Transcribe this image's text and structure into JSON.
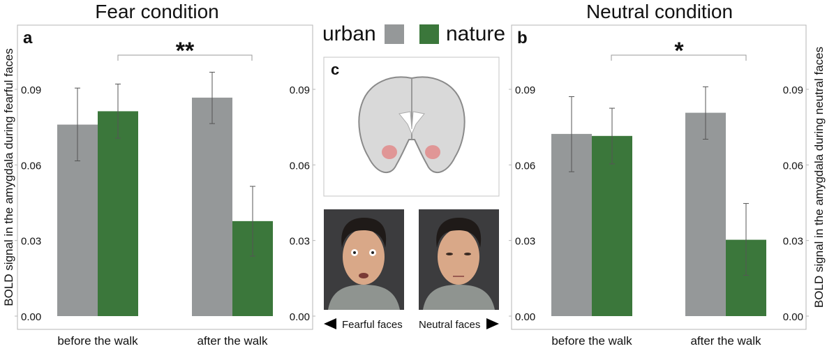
{
  "legend": {
    "urban_label": "urban",
    "nature_label": "nature"
  },
  "colors": {
    "urban": "#959899",
    "nature": "#3b773b",
    "error_bar": "#555555",
    "frame": "#b5b5b5"
  },
  "panel_c": {
    "label": "c",
    "fearful_label": "Fearful faces",
    "neutral_label": "Neutral faces",
    "images": [
      "brain-coronal-slice-amygdala-highlighted",
      "fearful-face-photo",
      "neutral-face-photo"
    ]
  },
  "chart_data": [
    {
      "type": "bar",
      "panel_label": "a",
      "title": "Fear condition",
      "ylabel": "BOLD signal in the amygdala during fearful faces",
      "categories": [
        "before the walk",
        "after the walk"
      ],
      "ylim": [
        0,
        0.09
      ],
      "yticks": [
        "0.00",
        "0.03",
        "0.06",
        "0.09"
      ],
      "series": [
        {
          "name": "urban",
          "values": [
            0.076,
            0.0867
          ],
          "err_high": [
            0.0905,
            0.0968
          ],
          "err_low": [
            0.0616,
            0.0764
          ]
        },
        {
          "name": "nature",
          "values": [
            0.0813,
            0.0377
          ],
          "err_high": [
            0.0921,
            0.0515
          ],
          "err_low": [
            0.0706,
            0.0238
          ]
        }
      ],
      "significance": "**",
      "grid": false
    },
    {
      "type": "bar",
      "panel_label": "b",
      "title": "Neutral condition",
      "ylabel": "BOLD signal in the amygdala during neutral faces",
      "categories": [
        "before the walk",
        "after the walk"
      ],
      "ylim": [
        0,
        0.09
      ],
      "yticks": [
        "0.00",
        "0.03",
        "0.06",
        "0.09"
      ],
      "series": [
        {
          "name": "urban",
          "values": [
            0.0723,
            0.0807
          ],
          "err_high": [
            0.0871,
            0.091
          ],
          "err_low": [
            0.0573,
            0.0702
          ]
        },
        {
          "name": "nature",
          "values": [
            0.0715,
            0.0303
          ],
          "err_high": [
            0.0825,
            0.0447
          ],
          "err_low": [
            0.0604,
            0.0162
          ]
        }
      ],
      "significance": "*",
      "grid": false
    }
  ]
}
